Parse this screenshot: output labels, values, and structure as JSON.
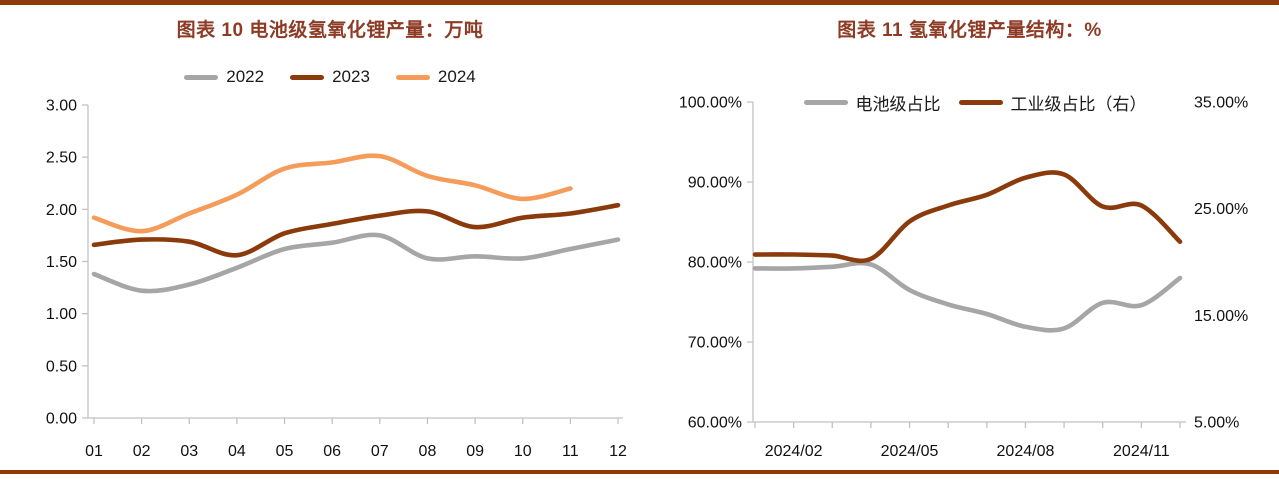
{
  "page": {
    "background": "#FFFFFF",
    "rule_color": "#8E3A0D"
  },
  "chart_data": [
    {
      "type": "line",
      "title": "图表 10 电池级氢氧化锂产量：万吨",
      "title_color": "#8E3B26",
      "xlabel": "",
      "ylabel": "",
      "ylim": [
        0,
        3
      ],
      "grid": false,
      "legend_position": "top-center",
      "y_tick_values": [
        0,
        0.5,
        1,
        1.5,
        2,
        2.5,
        3
      ],
      "y_ticks": [
        "0.00",
        "0.50",
        "1.00",
        "1.50",
        "2.00",
        "2.50",
        "3.00"
      ],
      "categories": [
        "01",
        "02",
        "03",
        "04",
        "05",
        "06",
        "07",
        "08",
        "09",
        "10",
        "11",
        "12"
      ],
      "series": [
        {
          "name": "2022",
          "color": "#A6A6A6",
          "values": [
            1.38,
            1.22,
            1.28,
            1.44,
            1.62,
            1.68,
            1.75,
            1.53,
            1.55,
            1.53,
            1.62,
            1.71
          ]
        },
        {
          "name": "2023",
          "color": "#8B3A0B",
          "values": [
            1.66,
            1.71,
            1.69,
            1.56,
            1.77,
            1.86,
            1.94,
            1.98,
            1.83,
            1.92,
            1.96,
            2.04
          ]
        },
        {
          "name": "2024",
          "color": "#F59C5B",
          "values": [
            1.92,
            1.79,
            1.96,
            2.14,
            2.39,
            2.45,
            2.51,
            2.32,
            2.23,
            2.1,
            2.2
          ]
        }
      ]
    },
    {
      "type": "line",
      "title": "图表 11 氢氧化锂产量结构：%",
      "title_color": "#8E3B26",
      "xlabel": "",
      "ylim_left": [
        60,
        100
      ],
      "ylim_right": [
        5,
        35
      ],
      "grid": false,
      "legend_position": "top-center",
      "y_tick_values_left": [
        60,
        70,
        80,
        90,
        100
      ],
      "y_ticks_left": [
        "60.00%",
        "70.00%",
        "80.00%",
        "90.00%",
        "100.00%"
      ],
      "y_tick_values_right": [
        5,
        15,
        25,
        35
      ],
      "y_ticks_right": [
        "5.00%",
        "15.00%",
        "25.00%",
        "35.00%"
      ],
      "categories": [
        "2024/01",
        "2024/02",
        "2024/03",
        "2024/04",
        "2024/05",
        "2024/06",
        "2024/07",
        "2024/08",
        "2024/09",
        "2024/10",
        "2024/11",
        "2024/12"
      ],
      "x_shown_labels": [
        {
          "index": 1,
          "label": "2024/02"
        },
        {
          "index": 4,
          "label": "2024/05"
        },
        {
          "index": 7,
          "label": "2024/08"
        },
        {
          "index": 10,
          "label": "2024/11"
        }
      ],
      "series": [
        {
          "name": "电池级占比",
          "color": "#A6A6A6",
          "axis": "left",
          "values": [
            79.2,
            79.2,
            79.4,
            79.7,
            76.5,
            74.7,
            73.5,
            71.9,
            71.7,
            74.9,
            74.6,
            78.0
          ]
        },
        {
          "name": "工业级占比（右）",
          "color": "#8B3A0B",
          "axis": "right",
          "values": [
            20.7,
            20.7,
            20.6,
            20.3,
            23.8,
            25.3,
            26.3,
            27.9,
            28.2,
            25.2,
            25.3,
            21.9
          ]
        }
      ]
    }
  ]
}
